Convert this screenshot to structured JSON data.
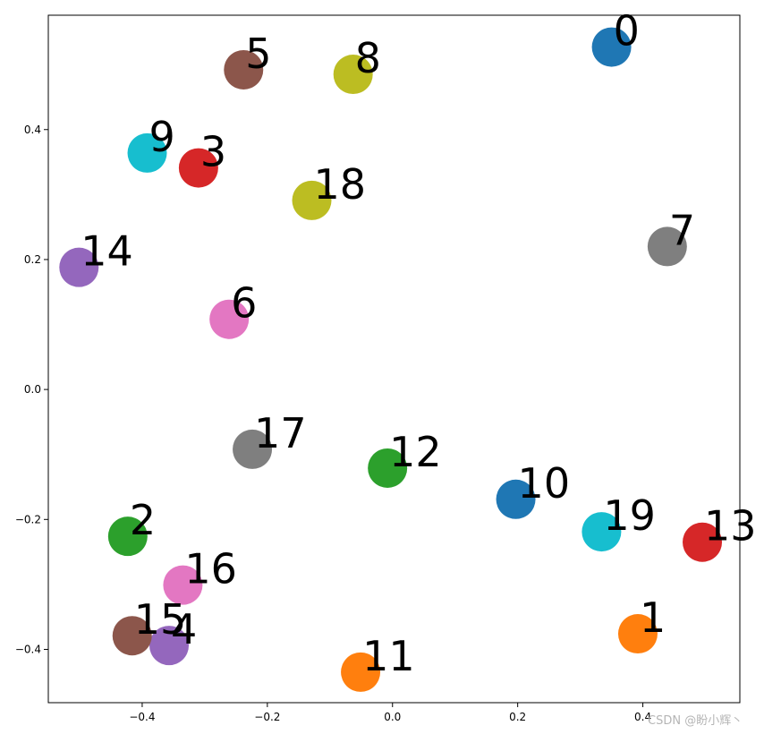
{
  "chart_data": {
    "type": "scatter",
    "title": "",
    "xlabel": "",
    "ylabel": "",
    "xlim": [
      -0.55,
      0.555
    ],
    "ylim": [
      -0.482,
      0.576
    ],
    "grid": false,
    "xticks": [
      -0.4,
      -0.2,
      0.0,
      0.2,
      0.4
    ],
    "xtick_labels": [
      "−0.4",
      "−0.2",
      "0.0",
      "0.2",
      "0.4"
    ],
    "yticks": [
      -0.4,
      -0.2,
      0.0,
      0.2,
      0.4
    ],
    "ytick_labels": [
      "−0.4",
      "−0.2",
      "0.0",
      "0.2",
      "0.4"
    ],
    "points": [
      {
        "label": "0",
        "x": 0.35,
        "y": 0.527,
        "color": "#1f77b4"
      },
      {
        "label": "1",
        "x": 0.392,
        "y": -0.376,
        "color": "#ff7f0e"
      },
      {
        "label": "2",
        "x": -0.423,
        "y": -0.226,
        "color": "#2ca02c"
      },
      {
        "label": "3",
        "x": -0.31,
        "y": 0.341,
        "color": "#d62728"
      },
      {
        "label": "4",
        "x": -0.357,
        "y": -0.394,
        "color": "#9467bd"
      },
      {
        "label": "5",
        "x": -0.238,
        "y": 0.492,
        "color": "#8c564b"
      },
      {
        "label": "6",
        "x": -0.261,
        "y": 0.108,
        "color": "#e377c2"
      },
      {
        "label": "7",
        "x": 0.439,
        "y": 0.22,
        "color": "#7f7f7f"
      },
      {
        "label": "8",
        "x": -0.063,
        "y": 0.485,
        "color": "#bcbd22"
      },
      {
        "label": "9",
        "x": -0.392,
        "y": 0.364,
        "color": "#17becf"
      },
      {
        "label": "10",
        "x": 0.197,
        "y": -0.169,
        "color": "#1f77b4"
      },
      {
        "label": "11",
        "x": -0.051,
        "y": -0.435,
        "color": "#ff7f0e"
      },
      {
        "label": "12",
        "x": -0.008,
        "y": -0.121,
        "color": "#2ca02c"
      },
      {
        "label": "13",
        "x": 0.495,
        "y": -0.235,
        "color": "#d62728"
      },
      {
        "label": "14",
        "x": -0.501,
        "y": 0.188,
        "color": "#9467bd"
      },
      {
        "label": "15",
        "x": -0.416,
        "y": -0.379,
        "color": "#8c564b"
      },
      {
        "label": "16",
        "x": -0.335,
        "y": -0.301,
        "color": "#e377c2"
      },
      {
        "label": "17",
        "x": -0.224,
        "y": -0.092,
        "color": "#7f7f7f"
      },
      {
        "label": "18",
        "x": -0.129,
        "y": 0.291,
        "color": "#bcbd22"
      },
      {
        "label": "19",
        "x": 0.334,
        "y": -0.219,
        "color": "#17becf"
      }
    ]
  },
  "watermark": "CSDN @盼小辉丶"
}
